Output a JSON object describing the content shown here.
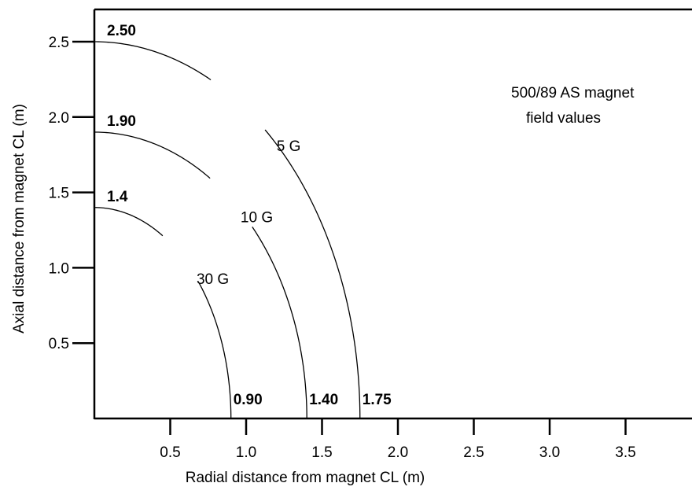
{
  "chart_data": {
    "type": "line",
    "title": "",
    "xlabel": "Radial distance from magnet CL (m)",
    "ylabel": "Axial distance from magnet CL (m)",
    "xlim": [
      0,
      3.95
    ],
    "ylim": [
      0,
      2.75
    ],
    "x_ticks": [
      "0.5",
      "1.0",
      "1.5",
      "2.0",
      "2.5",
      "3.0",
      "3.5"
    ],
    "y_ticks": [
      "0.5",
      "1.0",
      "1.5",
      "2.0",
      "2.5"
    ],
    "x_tick_values": [
      0.5,
      1.0,
      1.5,
      2.0,
      2.5,
      3.0,
      3.5
    ],
    "y_tick_values": [
      0.5,
      1.0,
      1.5,
      2.0,
      2.5
    ],
    "grid": false,
    "annotation": [
      "500/89 AS magnet",
      "field values"
    ],
    "series": [
      {
        "name": "5 G",
        "axial_value": 2.5,
        "radial_value": 1.75,
        "axial_label": "2.50",
        "radial_label": "1.75",
        "label_at": [
          1.28,
          1.81
        ],
        "gap_angles": [
          50,
          64
        ]
      },
      {
        "name": "10 G",
        "axial_value": 1.9,
        "radial_value": 1.4,
        "axial_label": "1.90",
        "radial_label": "1.40",
        "label_at": [
          1.07,
          1.34
        ],
        "gap_angles": [
          42,
          57
        ]
      },
      {
        "name": "30 G",
        "axial_value": 1.4,
        "radial_value": 0.9,
        "axial_label": "1.4",
        "radial_label": "0.90",
        "label_at": [
          0.78,
          0.93
        ],
        "gap_angles": [
          40,
          60
        ]
      }
    ]
  }
}
